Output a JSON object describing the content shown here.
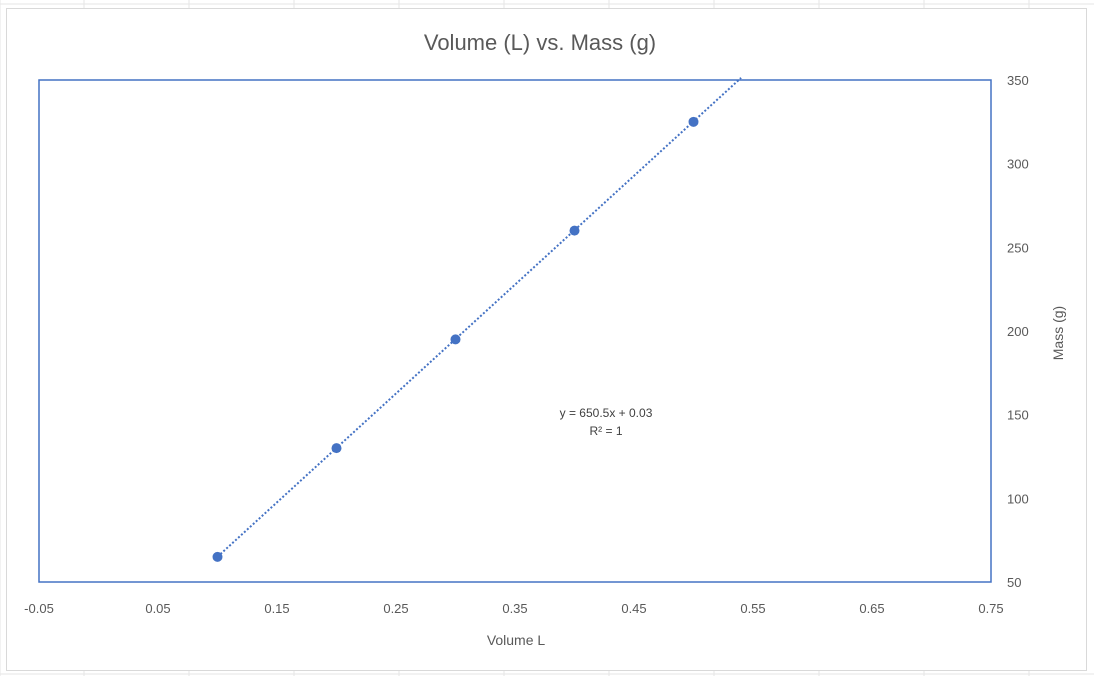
{
  "colors": {
    "series": "#4472C4",
    "plot_border": "#4472C4",
    "text": "#595959",
    "gridline": "#d9d9d9"
  },
  "chart_data": {
    "type": "scatter",
    "title": "Volume (L) vs. Mass (g)",
    "xlabel": "Volume L",
    "ylabel": "Mass (g)",
    "xlim": [
      -0.05,
      0.75
    ],
    "ylim": [
      50,
      350
    ],
    "x_ticks": [
      "-0.05",
      "0.05",
      "0.15",
      "0.25",
      "0.35",
      "0.45",
      "0.55",
      "0.65",
      "0.75"
    ],
    "y_ticks": [
      "50",
      "100",
      "150",
      "200",
      "250",
      "300",
      "350"
    ],
    "y_axis_position": "right",
    "grid": false,
    "series": [
      {
        "points": [
          {
            "x": 0.1,
            "y": 65
          },
          {
            "x": 0.2,
            "y": 130
          },
          {
            "x": 0.3,
            "y": 195
          },
          {
            "x": 0.4,
            "y": 260
          },
          {
            "x": 0.5,
            "y": 325
          }
        ]
      }
    ],
    "trendline": {
      "type": "linear",
      "style": "dotted",
      "slope": 650.5,
      "intercept": 0.03,
      "x_range": [
        0.1,
        0.54
      ],
      "equation_label": "y = 650.5x + 0.03",
      "r2_label": "R² = 1"
    }
  }
}
